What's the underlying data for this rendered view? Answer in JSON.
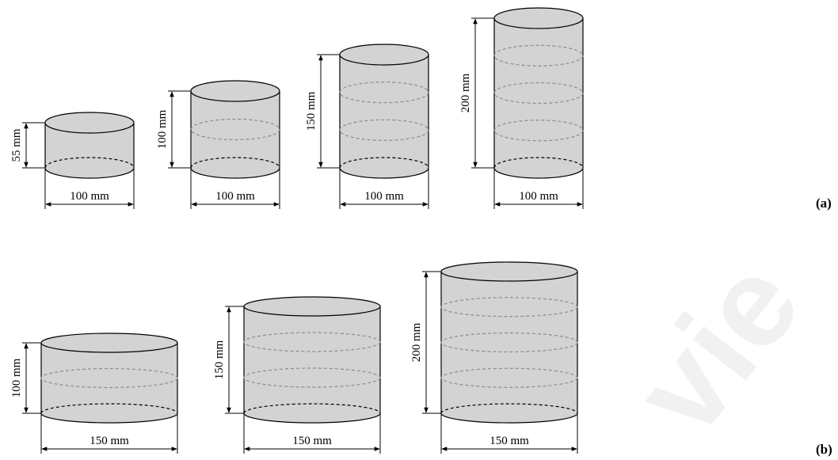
{
  "watermark": "vie",
  "panels": [
    {
      "label": "(a)",
      "cylinders": [
        {
          "height_label": "55 mm",
          "diameter_label": "100 mm",
          "layers": 1
        },
        {
          "height_label": "100 mm",
          "diameter_label": "100 mm",
          "layers": 2
        },
        {
          "height_label": "150 mm",
          "diameter_label": "100 mm",
          "layers": 3
        },
        {
          "height_label": "200 mm",
          "diameter_label": "100 mm",
          "layers": 4
        }
      ]
    },
    {
      "label": "(b)",
      "cylinders": [
        {
          "height_label": "100 mm",
          "diameter_label": "150 mm",
          "layers": 2
        },
        {
          "height_label": "150 mm",
          "diameter_label": "150 mm",
          "layers": 3
        },
        {
          "height_label": "200 mm",
          "diameter_label": "150 mm",
          "layers": 4
        }
      ]
    }
  ],
  "colors": {
    "fill": "#d3d3d3",
    "stroke": "#000000",
    "layer_line": "#8c8c8c"
  }
}
